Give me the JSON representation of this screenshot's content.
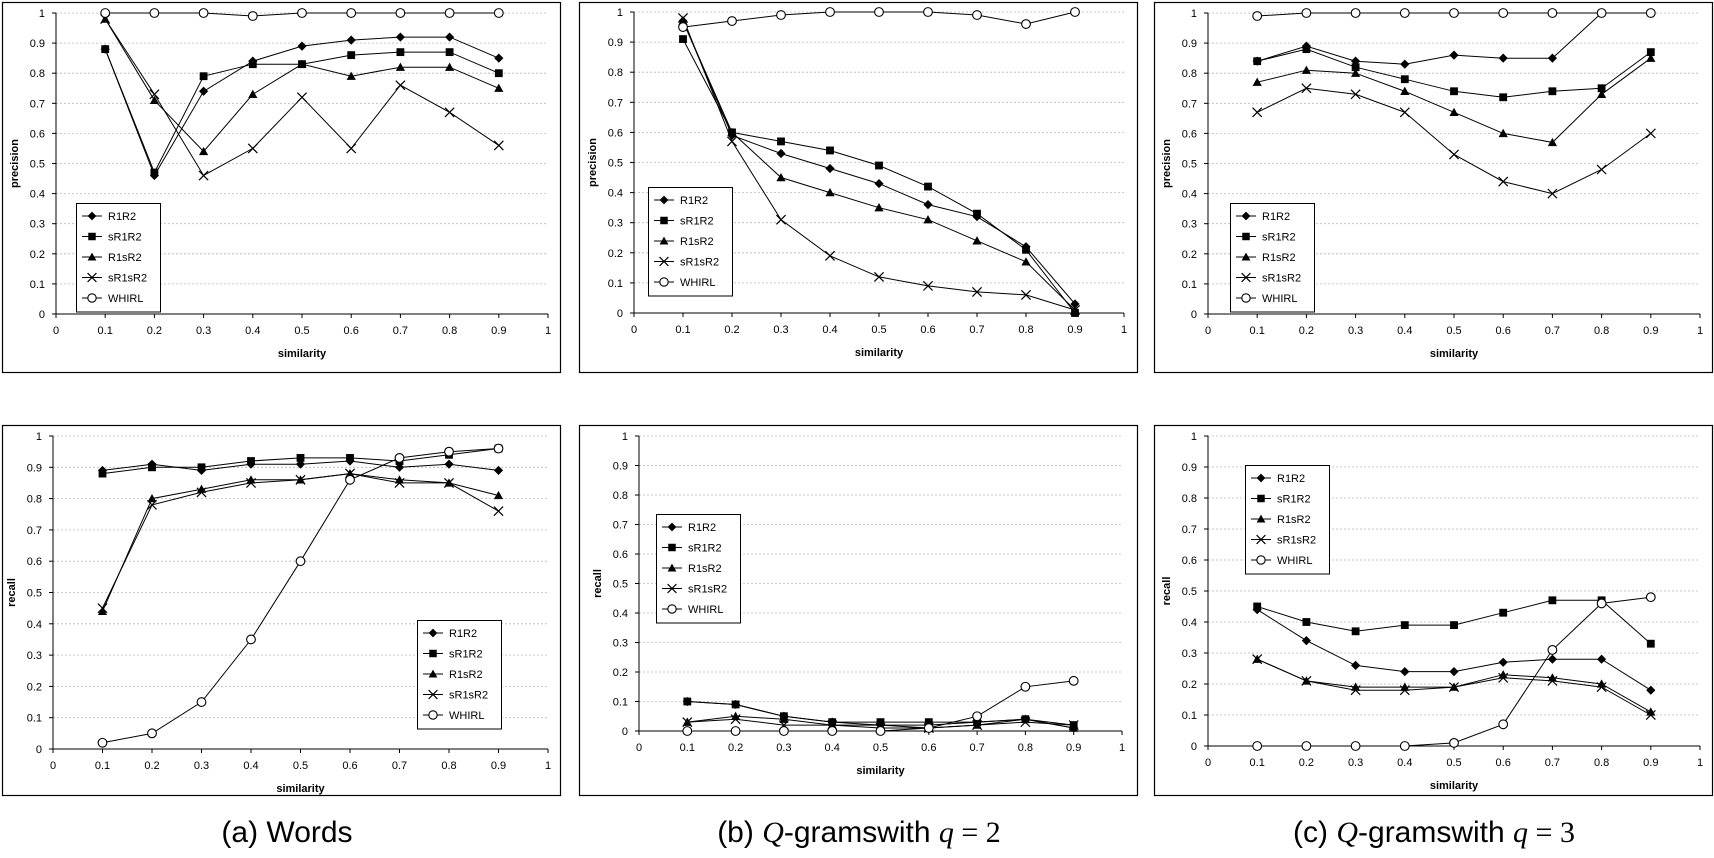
{
  "style": {
    "line_color": "#000000",
    "grid_color": "#b8b8b8",
    "background": "#ffffff"
  },
  "captions": [
    {
      "prefix": "(a) Words",
      "q": "",
      "var": "",
      "eq": "",
      "val": ""
    },
    {
      "prefix": "(b) ",
      "q": "Q",
      "var": "-gramswith ",
      "eq": "q",
      "val": " = 2"
    },
    {
      "prefix": "(c) ",
      "q": "Q",
      "var": "-gramswith ",
      "eq": "q",
      "val": " = 3"
    }
  ],
  "series_names": [
    "R1R2",
    "sR1R2",
    "R1sR2",
    "sR1sR2",
    "WHIRL"
  ],
  "series_markers": [
    "diamond",
    "square",
    "triangle",
    "x",
    "circle"
  ],
  "chart_data": [
    {
      "type": "line",
      "xlabel": "similarity",
      "ylabel": "precision",
      "xlim": [
        0,
        1
      ],
      "ylim": [
        0,
        1
      ],
      "grid": "horizontal",
      "legend": "bottom-left",
      "x": [
        0.1,
        0.2,
        0.3,
        0.4,
        0.5,
        0.6,
        0.7,
        0.8,
        0.9
      ],
      "xticks": [
        "0",
        "0.1",
        "0.2",
        "0.3",
        "0.4",
        "0.5",
        "0.6",
        "0.7",
        "0.8",
        "0.9",
        "1"
      ],
      "yticks": [
        "0",
        "0.1",
        "0.2",
        "0.3",
        "0.4",
        "0.5",
        "0.6",
        "0.7",
        "0.8",
        "0.9",
        "1"
      ],
      "series": [
        {
          "name": "R1R2",
          "values": [
            0.88,
            0.46,
            0.74,
            0.84,
            0.89,
            0.91,
            0.92,
            0.92,
            0.85
          ]
        },
        {
          "name": "sR1R2",
          "values": [
            0.88,
            0.47,
            0.79,
            0.83,
            0.83,
            0.86,
            0.87,
            0.87,
            0.8
          ]
        },
        {
          "name": "R1sR2",
          "values": [
            0.98,
            0.71,
            0.54,
            0.73,
            0.83,
            0.79,
            0.82,
            0.82,
            0.75
          ]
        },
        {
          "name": "sR1sR2",
          "values": [
            0.98,
            0.73,
            0.46,
            0.55,
            0.72,
            0.55,
            0.76,
            0.67,
            0.56
          ]
        },
        {
          "name": "WHIRL",
          "values": [
            1.0,
            1.0,
            1.0,
            0.99,
            1.0,
            1.0,
            1.0,
            1.0,
            1.0
          ]
        }
      ]
    },
    {
      "type": "line",
      "xlabel": "similarity",
      "ylabel": "precision",
      "xlim": [
        0,
        1
      ],
      "ylim": [
        0,
        1
      ],
      "grid": "horizontal",
      "legend": "bottom-left",
      "x": [
        0.1,
        0.2,
        0.3,
        0.4,
        0.5,
        0.6,
        0.7,
        0.8,
        0.9
      ],
      "xticks": [
        "0",
        "0.1",
        "0.2",
        "0.3",
        "0.4",
        "0.5",
        "0.6",
        "0.7",
        "0.8",
        "0.9",
        "1"
      ],
      "yticks": [
        "0",
        "0.1",
        "0.2",
        "0.3",
        "0.4",
        "0.5",
        "0.6",
        "0.7",
        "0.8",
        "0.9",
        "1"
      ],
      "series": [
        {
          "name": "R1R2",
          "values": [
            0.97,
            0.59,
            0.53,
            0.48,
            0.43,
            0.36,
            0.32,
            0.22,
            0.03
          ]
        },
        {
          "name": "sR1R2",
          "values": [
            0.91,
            0.6,
            0.57,
            0.54,
            0.49,
            0.42,
            0.33,
            0.21,
            0.0
          ]
        },
        {
          "name": "R1sR2",
          "values": [
            0.97,
            0.6,
            0.45,
            0.4,
            0.35,
            0.31,
            0.24,
            0.17,
            0.01
          ]
        },
        {
          "name": "sR1sR2",
          "values": [
            0.98,
            0.57,
            0.31,
            0.19,
            0.12,
            0.09,
            0.07,
            0.06,
            0.01
          ]
        },
        {
          "name": "WHIRL",
          "values": [
            0.95,
            0.97,
            0.99,
            1.0,
            1.0,
            1.0,
            0.99,
            0.96,
            1.0
          ]
        }
      ]
    },
    {
      "type": "line",
      "xlabel": "similarity",
      "ylabel": "precision",
      "xlim": [
        0,
        1
      ],
      "ylim": [
        0,
        1
      ],
      "grid": "horizontal",
      "legend": "bottom-left",
      "x": [
        0.1,
        0.2,
        0.3,
        0.4,
        0.5,
        0.6,
        0.7,
        0.8,
        0.9
      ],
      "xticks": [
        "0",
        "0.1",
        "0.2",
        "0.3",
        "0.4",
        "0.5",
        "0.6",
        "0.7",
        "0.8",
        "0.9",
        "1"
      ],
      "yticks": [
        "0",
        "0.1",
        "0.2",
        "0.3",
        "0.4",
        "0.5",
        "0.6",
        "0.7",
        "0.8",
        "0.9",
        "1"
      ],
      "series": [
        {
          "name": "R1R2",
          "values": [
            0.84,
            0.89,
            0.84,
            0.83,
            0.86,
            0.85,
            0.85,
            1.0,
            1.0
          ]
        },
        {
          "name": "sR1R2",
          "values": [
            0.84,
            0.88,
            0.82,
            0.78,
            0.74,
            0.72,
            0.74,
            0.75,
            0.87
          ]
        },
        {
          "name": "R1sR2",
          "values": [
            0.77,
            0.81,
            0.8,
            0.74,
            0.67,
            0.6,
            0.57,
            0.73,
            0.85
          ]
        },
        {
          "name": "sR1sR2",
          "values": [
            0.67,
            0.75,
            0.73,
            0.67,
            0.53,
            0.44,
            0.4,
            0.48,
            0.6
          ]
        },
        {
          "name": "WHIRL",
          "values": [
            0.99,
            1.0,
            1.0,
            1.0,
            1.0,
            1.0,
            1.0,
            1.0,
            1.0
          ]
        }
      ]
    },
    {
      "type": "line",
      "xlabel": "similarity",
      "ylabel": "recall",
      "xlim": [
        0,
        1
      ],
      "ylim": [
        0,
        1
      ],
      "grid": "horizontal",
      "legend": "bottom-right",
      "x": [
        0.1,
        0.2,
        0.3,
        0.4,
        0.5,
        0.6,
        0.7,
        0.8,
        0.9
      ],
      "xticks": [
        "0",
        "0.1",
        "0.2",
        "0.3",
        "0.4",
        "0.5",
        "0.6",
        "0.7",
        "0.8",
        "0.9",
        "1"
      ],
      "yticks": [
        "0",
        "0.1",
        "0.2",
        "0.3",
        "0.4",
        "0.5",
        "0.6",
        "0.7",
        "0.8",
        "0.9",
        "1"
      ],
      "series": [
        {
          "name": "R1R2",
          "values": [
            0.89,
            0.91,
            0.89,
            0.91,
            0.91,
            0.92,
            0.9,
            0.91,
            0.89
          ]
        },
        {
          "name": "sR1R2",
          "values": [
            0.88,
            0.9,
            0.9,
            0.92,
            0.93,
            0.93,
            0.92,
            0.94,
            0.96
          ]
        },
        {
          "name": "R1sR2",
          "values": [
            0.44,
            0.8,
            0.83,
            0.86,
            0.86,
            0.88,
            0.86,
            0.85,
            0.81
          ]
        },
        {
          "name": "sR1sR2",
          "values": [
            0.45,
            0.78,
            0.82,
            0.85,
            0.86,
            0.88,
            0.85,
            0.85,
            0.76
          ]
        },
        {
          "name": "WHIRL",
          "values": [
            0.02,
            0.05,
            0.15,
            0.35,
            0.6,
            0.86,
            0.93,
            0.95,
            0.96
          ]
        }
      ]
    },
    {
      "type": "line",
      "xlabel": "similarity",
      "ylabel": "recall",
      "xlim": [
        0,
        1
      ],
      "ylim": [
        0,
        1
      ],
      "grid": "horizontal",
      "legend": "middle-left",
      "x": [
        0.1,
        0.2,
        0.3,
        0.4,
        0.5,
        0.6,
        0.7,
        0.8,
        0.9
      ],
      "xticks": [
        "0",
        "0.1",
        "0.2",
        "0.3",
        "0.4",
        "0.5",
        "0.6",
        "0.7",
        "0.8",
        "0.9",
        "1"
      ],
      "yticks": [
        "0",
        "0.1",
        "0.2",
        "0.3",
        "0.4",
        "0.5",
        "0.6",
        "0.7",
        "0.8",
        "0.9",
        "1"
      ],
      "series": [
        {
          "name": "R1R2",
          "values": [
            0.1,
            0.09,
            0.05,
            0.03,
            0.02,
            0.02,
            0.03,
            0.04,
            0.01
          ]
        },
        {
          "name": "sR1R2",
          "values": [
            0.1,
            0.09,
            0.05,
            0.03,
            0.03,
            0.03,
            0.03,
            0.04,
            0.02
          ]
        },
        {
          "name": "R1sR2",
          "values": [
            0.03,
            0.05,
            0.04,
            0.02,
            0.02,
            0.01,
            0.02,
            0.04,
            0.01
          ]
        },
        {
          "name": "sR1sR2",
          "values": [
            0.03,
            0.04,
            0.02,
            0.02,
            0.01,
            0.01,
            0.02,
            0.03,
            0.02
          ]
        },
        {
          "name": "WHIRL",
          "values": [
            0.0,
            0.0,
            0.0,
            0.0,
            0.0,
            0.01,
            0.05,
            0.15,
            0.17
          ]
        }
      ]
    },
    {
      "type": "line",
      "xlabel": "similarity",
      "ylabel": "recall",
      "xlim": [
        0,
        1
      ],
      "ylim": [
        0,
        1
      ],
      "grid": "horizontal",
      "legend": "top-left",
      "x": [
        0.1,
        0.2,
        0.3,
        0.4,
        0.5,
        0.6,
        0.7,
        0.8,
        0.9
      ],
      "xticks": [
        "0",
        "0.1",
        "0.2",
        "0.3",
        "0.4",
        "0.5",
        "0.6",
        "0.7",
        "0.8",
        "0.9",
        "1"
      ],
      "yticks": [
        "0",
        "0.1",
        "0.2",
        "0.3",
        "0.4",
        "0.5",
        "0.6",
        "0.7",
        "0.8",
        "0.9",
        "1"
      ],
      "series": [
        {
          "name": "R1R2",
          "values": [
            0.44,
            0.34,
            0.26,
            0.24,
            0.24,
            0.27,
            0.28,
            0.28,
            0.18
          ]
        },
        {
          "name": "sR1R2",
          "values": [
            0.45,
            0.4,
            0.37,
            0.39,
            0.39,
            0.43,
            0.47,
            0.47,
            0.33
          ]
        },
        {
          "name": "R1sR2",
          "values": [
            0.28,
            0.21,
            0.19,
            0.19,
            0.19,
            0.23,
            0.22,
            0.2,
            0.11
          ]
        },
        {
          "name": "sR1sR2",
          "values": [
            0.28,
            0.21,
            0.18,
            0.18,
            0.19,
            0.22,
            0.21,
            0.19,
            0.1
          ]
        },
        {
          "name": "WHIRL",
          "values": [
            0.0,
            0.0,
            0.0,
            0.0,
            0.01,
            0.07,
            0.31,
            0.46,
            0.48
          ]
        }
      ]
    }
  ]
}
